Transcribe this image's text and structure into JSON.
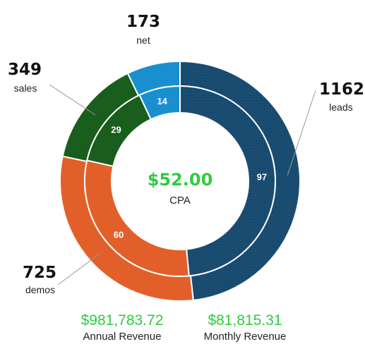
{
  "colors": {
    "leads": "#174a6f",
    "demos": "#e35f2a",
    "sales": "#195e1c",
    "net": "#1a8fd0",
    "accent_green": "#2ecc40",
    "leader_line": "#999999"
  },
  "chart_data": {
    "type": "pie",
    "variant": "nested-donut",
    "outer_ring": [
      {
        "label": "leads",
        "value": 1162,
        "color": "#174a6f"
      },
      {
        "label": "demos",
        "value": 725,
        "color": "#e35f2a"
      },
      {
        "label": "sales",
        "value": 349,
        "color": "#195e1c"
      },
      {
        "label": "net",
        "value": 173,
        "color": "#1a8fd0"
      }
    ],
    "inner_ring": [
      {
        "label": "97",
        "value": 97,
        "color": "#174a6f"
      },
      {
        "label": "60",
        "value": 60,
        "color": "#e35f2a"
      },
      {
        "label": "29",
        "value": 29,
        "color": "#195e1c"
      },
      {
        "label": "14",
        "value": 14,
        "color": "#1a8fd0"
      }
    ],
    "center": {
      "value": "$52.00",
      "label": "CPA"
    }
  },
  "footer": {
    "annual": {
      "amount": "$981,783.72",
      "label": "Annual Revenue"
    },
    "monthly": {
      "amount": "$81,815.31",
      "label": "Monthly Revenue"
    }
  }
}
